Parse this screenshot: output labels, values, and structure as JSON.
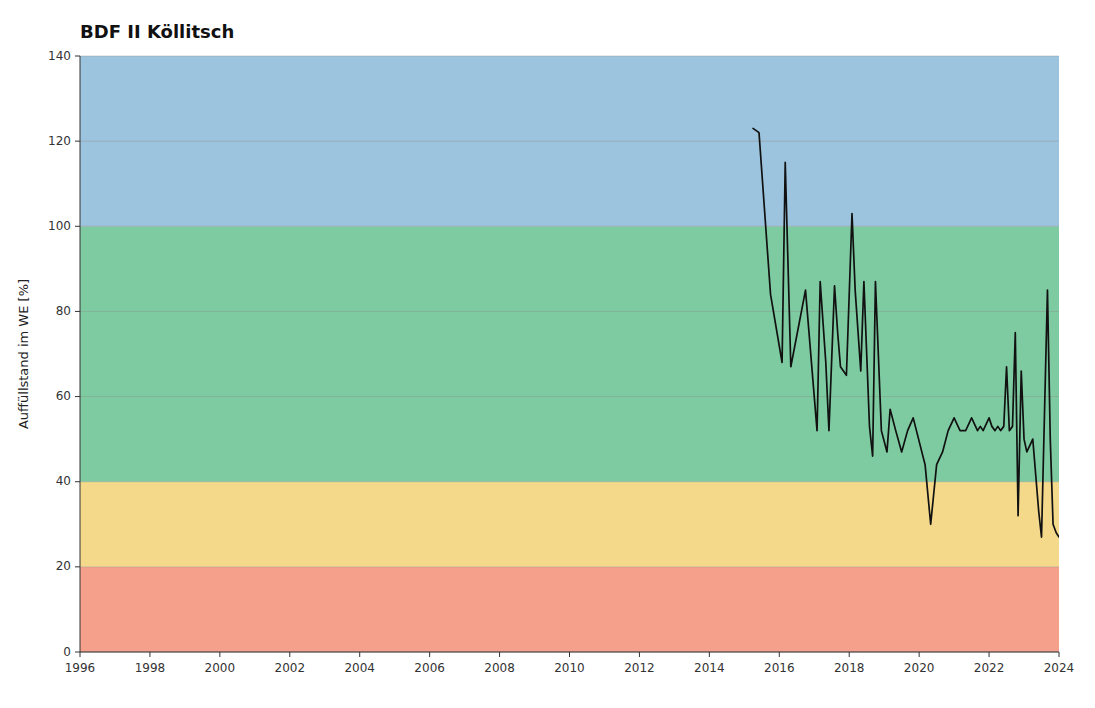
{
  "chart_data": {
    "type": "line",
    "title": "BDF II Köllitsch",
    "y_label": "Auffüllstand im WE [%]",
    "xlim": [
      1996,
      2024
    ],
    "ylim": [
      0,
      140
    ],
    "xticks": [
      1996,
      1998,
      2000,
      2002,
      2004,
      2006,
      2008,
      2010,
      2012,
      2014,
      2016,
      2018,
      2020,
      2022,
      2024
    ],
    "yticks": [
      0,
      20,
      40,
      60,
      80,
      100,
      120,
      140
    ],
    "grid": "y",
    "color": "#111111",
    "zones": [
      {
        "from": 0,
        "to": 20,
        "color": "#F4A08A"
      },
      {
        "from": 20,
        "to": 40,
        "color": "#F5D98B"
      },
      {
        "from": 40,
        "to": 100,
        "color": "#7ECBA1"
      },
      {
        "from": 100,
        "to": 140,
        "color": "#9DC4DE"
      }
    ],
    "x": [
      2015.25,
      2015.42,
      2015.75,
      2016.08,
      2016.17,
      2016.33,
      2016.75,
      2017.08,
      2017.17,
      2017.33,
      2017.42,
      2017.58,
      2017.67,
      2017.75,
      2017.92,
      2018.08,
      2018.17,
      2018.33,
      2018.42,
      2018.58,
      2018.67,
      2018.75,
      2018.92,
      2019.08,
      2019.17,
      2019.33,
      2019.5,
      2019.67,
      2019.83,
      2020.17,
      2020.33,
      2020.5,
      2020.67,
      2020.83,
      2021.0,
      2021.17,
      2021.33,
      2021.5,
      2021.67,
      2021.75,
      2021.83,
      2022.0,
      2022.08,
      2022.17,
      2022.25,
      2022.33,
      2022.42,
      2022.5,
      2022.58,
      2022.67,
      2022.75,
      2022.83,
      2022.92,
      2023.0,
      2023.08,
      2023.25,
      2023.42,
      2023.5,
      2023.67,
      2023.75,
      2023.83,
      2023.92,
      2024.0
    ],
    "values": [
      123,
      122,
      84,
      68,
      115,
      67,
      85,
      52,
      87,
      68,
      52,
      86,
      75,
      67,
      65,
      103,
      85,
      66,
      87,
      53,
      46,
      87,
      52,
      47,
      57,
      52,
      47,
      52,
      55,
      44,
      30,
      44,
      47,
      52,
      55,
      52,
      52,
      55,
      52,
      53,
      52,
      55,
      53,
      52,
      53,
      52,
      53,
      67,
      52,
      53,
      75,
      32,
      66,
      50,
      47,
      50,
      33,
      27,
      85,
      50,
      30,
      28,
      27
    ]
  }
}
